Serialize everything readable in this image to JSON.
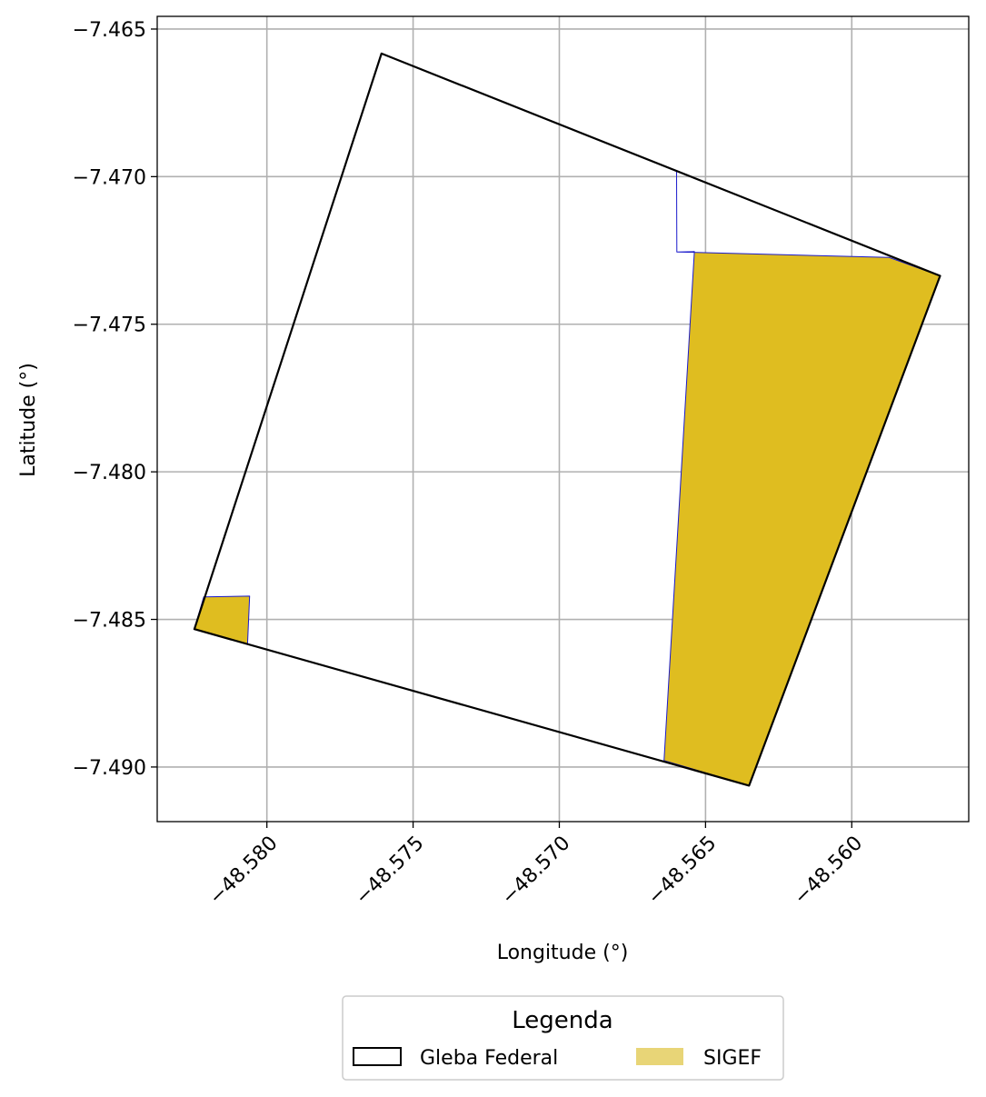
{
  "chart_data": {
    "type": "map",
    "xlabel": "Longitude (°)",
    "ylabel": "Latitude (°)",
    "xlim": [
      -48.58375,
      -48.556
    ],
    "ylim": [
      -7.49185,
      -7.46457
    ],
    "xticks": [
      -48.58,
      -48.575,
      -48.57,
      -48.565,
      -48.56
    ],
    "xtick_labels": [
      "−48.580",
      "−48.575",
      "−48.570",
      "−48.565",
      "−48.560"
    ],
    "yticks": [
      -7.465,
      -7.47,
      -7.475,
      -7.48,
      -7.485,
      -7.49
    ],
    "ytick_labels": [
      "−7.465",
      "−7.470",
      "−7.475",
      "−7.480",
      "−7.485",
      "−7.490"
    ],
    "grid": true,
    "legend": {
      "title": "Legenda",
      "position": "bottom-center",
      "entries": [
        {
          "label": "Gleba Federal",
          "style": "outline",
          "edge_color": "#000000"
        },
        {
          "label": "SIGEF",
          "style": "fill",
          "fill_color": "#e8d577"
        }
      ]
    },
    "layers": [
      {
        "name": "Gleba Federal",
        "fill": "none",
        "edge_color": "#000000",
        "polygons": [
          [
            [
              -48.57608,
              -7.46583
            ],
            [
              -48.55698,
              -7.47336
            ],
            [
              -48.56351,
              -7.49063
            ],
            [
              -48.58248,
              -7.48533
            ]
          ]
        ]
      },
      {
        "name": "SIGEF",
        "fill": "#dfbd20",
        "edge_color": "#1a1acc",
        "polygons": [
          [
            [
              -48.56599,
              -7.4698
            ],
            [
              -48.56598,
              -7.47255
            ],
            [
              -48.55872,
              -7.47274
            ],
            [
              -48.55698,
              -7.47336
            ],
            [
              -48.56351,
              -7.49063
            ],
            [
              -48.56642,
              -7.48978
            ],
            [
              -48.56538,
              -7.47254
            ],
            [
              -48.56598,
              -7.47255
            ],
            [
              -48.56599,
              -7.4698
            ],
            [
              -48.55698,
              -7.47336
            ]
          ],
          [
            [
              -48.58216,
              -7.48424
            ],
            [
              -48.58059,
              -7.48421
            ],
            [
              -48.58066,
              -7.48583
            ],
            [
              -48.58248,
              -7.48533
            ]
          ]
        ]
      }
    ]
  }
}
